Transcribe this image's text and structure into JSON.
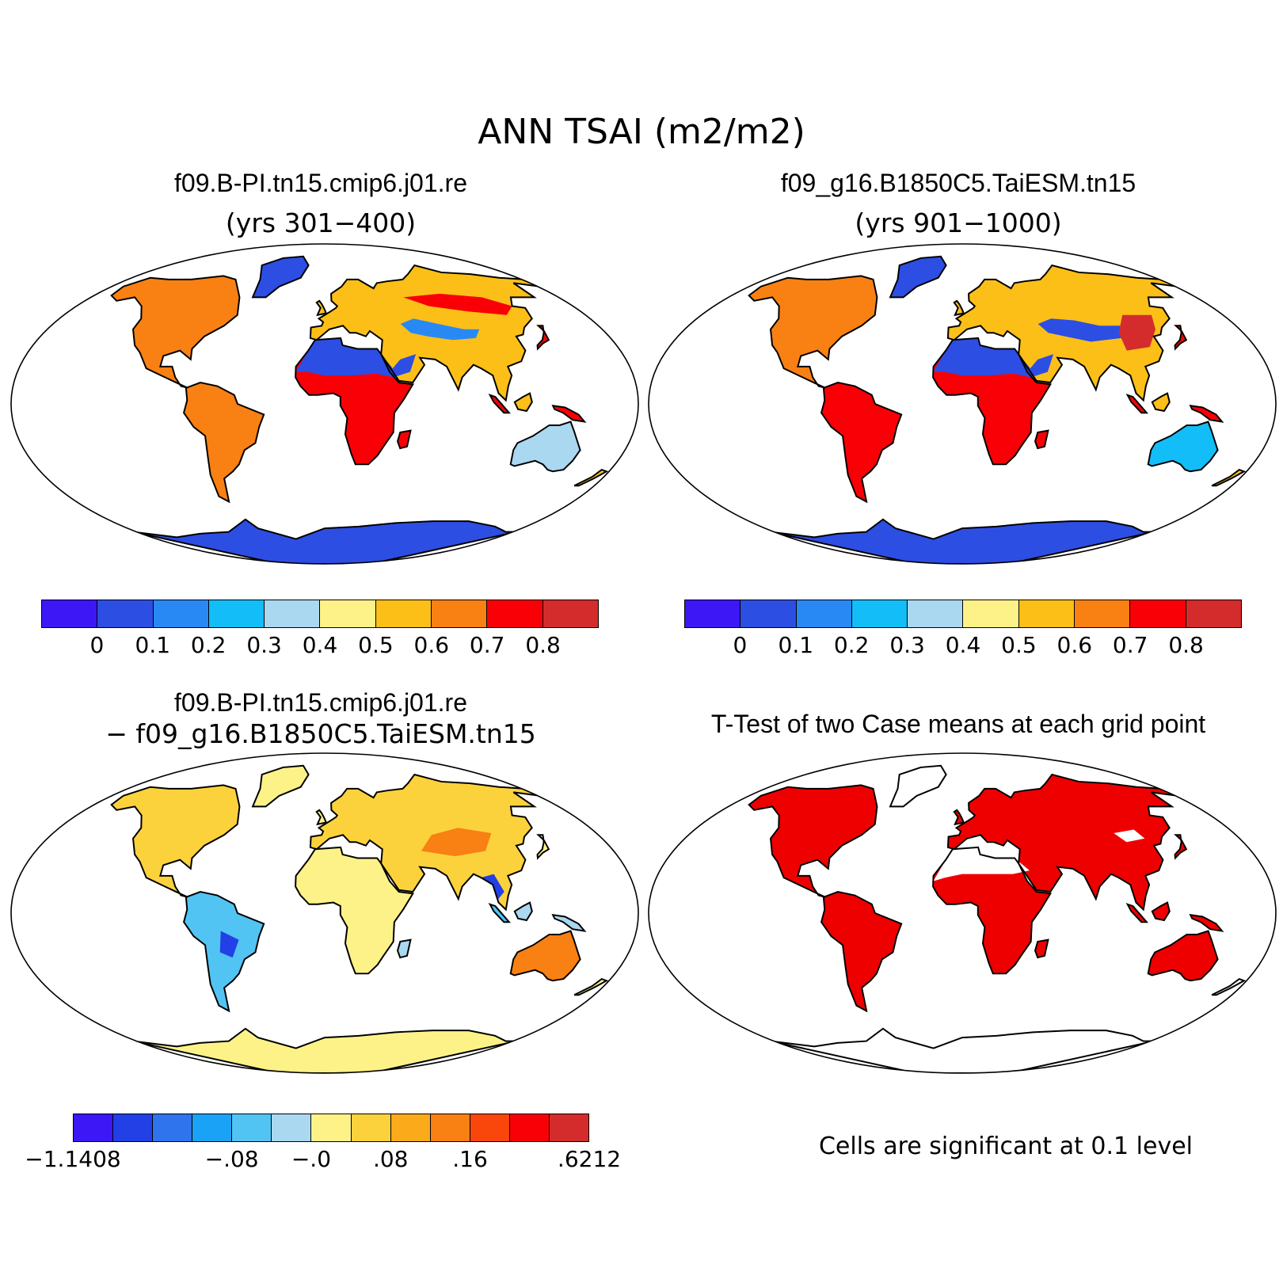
{
  "title": "ANN TSAI (m2/m2)",
  "panels": [
    {
      "title": "f09.B-PI.tn15.cmip6.j01.re",
      "subtitle": "(yrs 301−400)"
    },
    {
      "title": "f09_g16.B1850C5.TaiESM.tn15",
      "subtitle": "(yrs 901−1000)"
    },
    {
      "title": "f09.B-PI.tn15.cmip6.j01.re",
      "subtitle": "− f09_g16.B1850C5.TaiESM.tn15"
    },
    {
      "title": "T-Test of two Case means at each grid point",
      "subtitle": ""
    }
  ],
  "colorbars": {
    "absolute": {
      "colors": [
        "#3d17f5",
        "#2d4ee3",
        "#2889f5",
        "#13bdf7",
        "#a9d8f0",
        "#fdf288",
        "#fcbf17",
        "#f98013",
        "#f90006",
        "#d42c2c"
      ],
      "labels": [
        "0",
        "0.1",
        "0.2",
        "0.3",
        "0.4",
        "0.5",
        "0.6",
        "0.7",
        "0.8"
      ]
    },
    "difference": {
      "colors": [
        "#3d17f5",
        "#2240e6",
        "#2f74ec",
        "#1aa2f6",
        "#52c4f3",
        "#a9d8f0",
        "#fdf288",
        "#fcd23c",
        "#fbab19",
        "#f98013",
        "#f9470b",
        "#f90006",
        "#d42c2c"
      ],
      "labels": [
        "−1.1408",
        "−.08",
        "−.0",
        ".08",
        ".16",
        ".6212"
      ]
    }
  },
  "significance_note": "Cells are significant at 0.1 level"
}
